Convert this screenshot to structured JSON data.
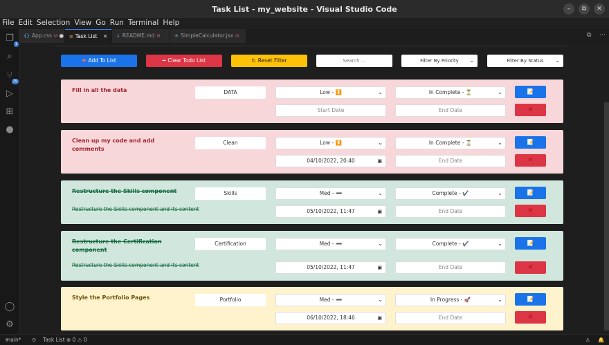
{
  "window": {
    "title": "Task List - my_website - Visual Studio Code"
  },
  "menu": [
    "File",
    "Edit",
    "Selection",
    "View",
    "Go",
    "Run",
    "Terminal",
    "Help"
  ],
  "activity": {
    "scm_badge": "1",
    "ext_badge": "29"
  },
  "tabs": [
    {
      "label": "App.css",
      "modified": "M",
      "active": false
    },
    {
      "label": "Task List",
      "active": true
    },
    {
      "label": "README.md",
      "modified": "M",
      "active": false
    },
    {
      "label": "SimpleCalculator.jsx",
      "modified": "M",
      "active": false
    }
  ],
  "controls": {
    "add_label": "Add To List",
    "clear_label": "Clear Todo List",
    "reset_label": "Reset Filter",
    "search_placeholder": "Search ...",
    "priority_filter": "Filter By Priority",
    "status_filter": "Filter By Status"
  },
  "colors": {
    "add": "#1a73e8",
    "clear": "#dc3545",
    "reset": "#ffc107",
    "pending_bg": "#f8d7da",
    "done_bg": "#d1e7dd",
    "progress_bg": "#fff3cd"
  },
  "tasks": [
    {
      "title": "Fill in all the data",
      "description": "",
      "category": "DATA",
      "priority": "Low - ⏬",
      "status": "In Complete - ⏳",
      "start_date": "Start Date",
      "end_date": "End Date",
      "style": "pending"
    },
    {
      "title": "Clean up my code and add comments",
      "description": "",
      "category": "Clean",
      "priority": "Low - ⏬",
      "status": "In Complete - ⏳",
      "start_date": "04/10/2022, 20:40",
      "end_date": "End Date",
      "style": "pending"
    },
    {
      "title": "Restructure the Skills component",
      "description": "Restructure the Skills component and its content",
      "category": "Skills",
      "priority": "Med - ➖",
      "status": "Complete - ✔️",
      "start_date": "05/10/2022, 11:47",
      "end_date": "End Date",
      "style": "done"
    },
    {
      "title": "Restructure the Certification component",
      "description": "Restructure the Skills component and its content",
      "category": "Certification",
      "priority": "Med - ➖",
      "status": "Complete - ✔️",
      "start_date": "05/10/2022, 11:47",
      "end_date": "End Date",
      "style": "done"
    },
    {
      "title": "Style the Portfolio Pages",
      "description": "",
      "category": "Portfolio",
      "priority": "Med - ➖",
      "status": "In Progress - 🚀",
      "start_date": "06/10/2022, 18:46",
      "end_date": "End Date",
      "style": "progress"
    }
  ],
  "status": {
    "branch": "main*",
    "task": "Task List",
    "problems": "⊗ 0 ⚠ 0"
  }
}
